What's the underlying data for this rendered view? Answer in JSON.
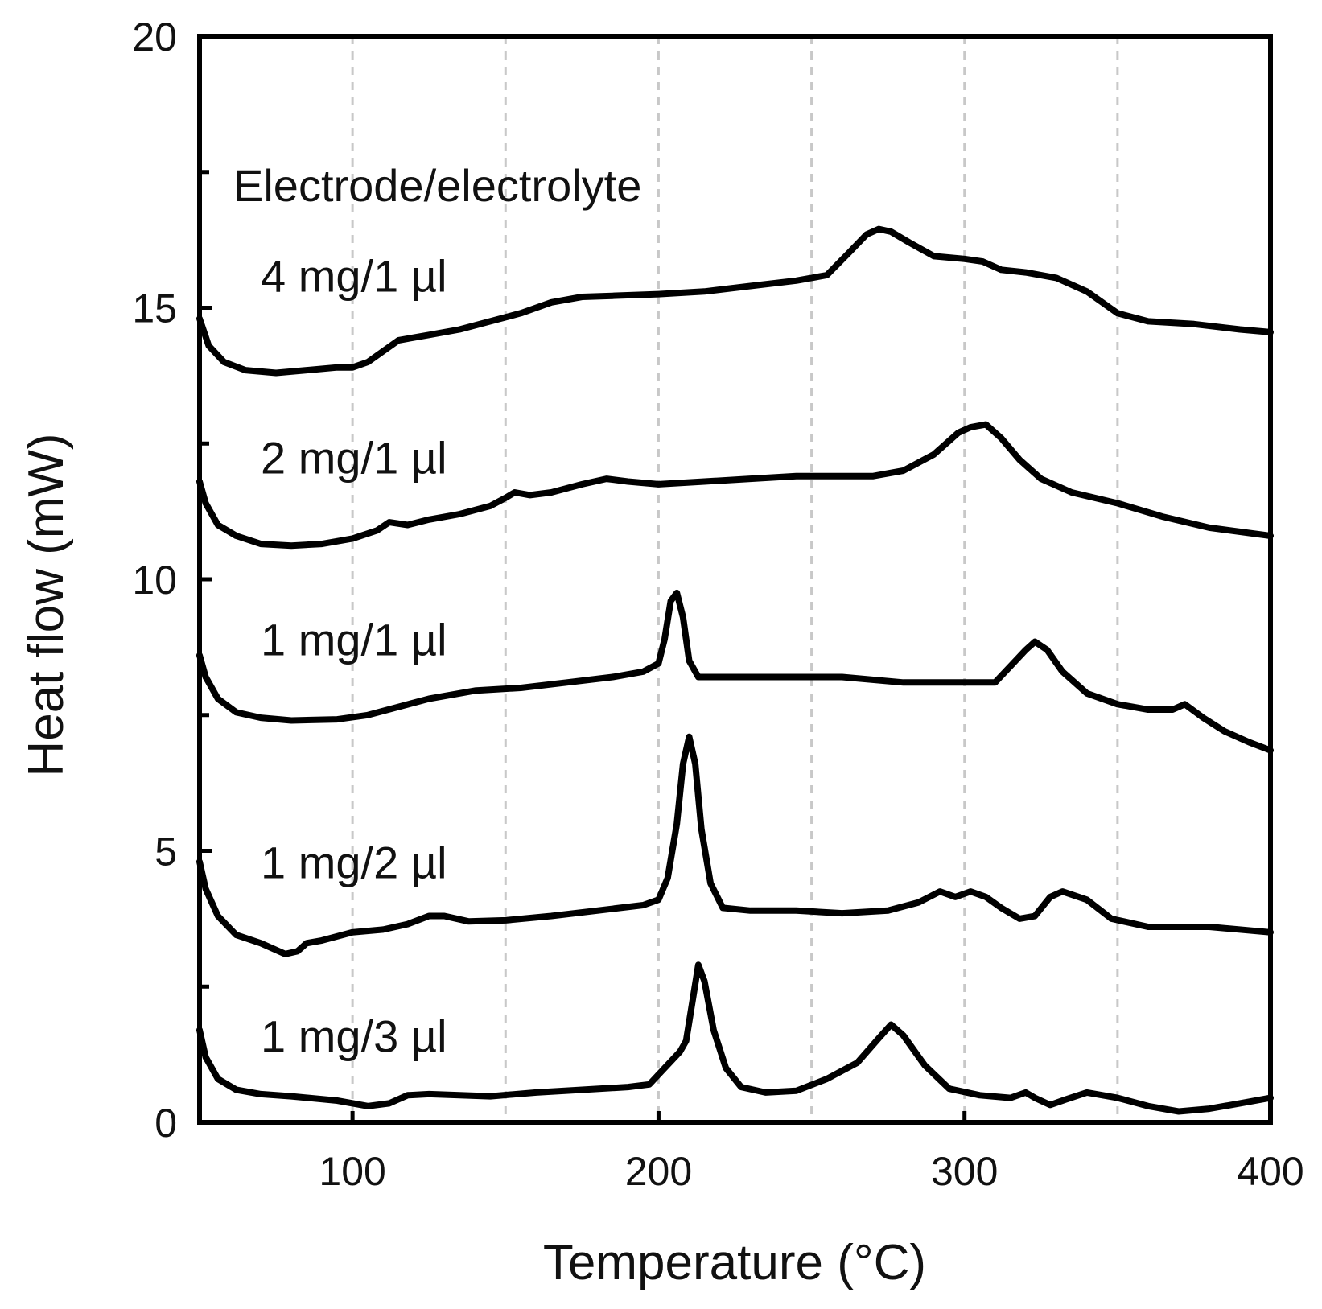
{
  "chart_data": {
    "type": "line",
    "title": "",
    "xlabel": "Temperature (°C)",
    "ylabel": "Heat flow (mW)",
    "xlim": [
      50,
      400
    ],
    "ylim": [
      0,
      20
    ],
    "x_ticks": [
      100,
      200,
      300,
      400
    ],
    "y_ticks": [
      0,
      5,
      10,
      15,
      20
    ],
    "y_minor_ticks": [
      2.5,
      7.5,
      12.5,
      17.5
    ],
    "x_grid": [
      100,
      150,
      200,
      250,
      300,
      350
    ],
    "grid": "vertical dashed",
    "annotation_title": "Electrode/electrolyte",
    "series": [
      {
        "name": "4 mg/1 µl",
        "label": "4 mg/1 µl",
        "label_at": [
          70,
          15.3
        ],
        "points": [
          [
            50,
            14.8
          ],
          [
            53,
            14.3
          ],
          [
            58,
            14.0
          ],
          [
            65,
            13.85
          ],
          [
            75,
            13.8
          ],
          [
            85,
            13.85
          ],
          [
            95,
            13.9
          ],
          [
            100,
            13.9
          ],
          [
            105,
            14.0
          ],
          [
            110,
            14.2
          ],
          [
            115,
            14.4
          ],
          [
            125,
            14.5
          ],
          [
            135,
            14.6
          ],
          [
            145,
            14.75
          ],
          [
            155,
            14.9
          ],
          [
            165,
            15.1
          ],
          [
            175,
            15.2
          ],
          [
            185,
            15.22
          ],
          [
            200,
            15.25
          ],
          [
            215,
            15.3
          ],
          [
            230,
            15.4
          ],
          [
            245,
            15.5
          ],
          [
            255,
            15.6
          ],
          [
            262,
            16.0
          ],
          [
            268,
            16.35
          ],
          [
            272,
            16.45
          ],
          [
            276,
            16.4
          ],
          [
            282,
            16.2
          ],
          [
            290,
            15.95
          ],
          [
            300,
            15.9
          ],
          [
            306,
            15.85
          ],
          [
            312,
            15.7
          ],
          [
            320,
            15.65
          ],
          [
            330,
            15.55
          ],
          [
            340,
            15.3
          ],
          [
            350,
            14.9
          ],
          [
            360,
            14.75
          ],
          [
            375,
            14.7
          ],
          [
            390,
            14.6
          ],
          [
            400,
            14.55
          ]
        ]
      },
      {
        "name": "2 mg/1 µl",
        "label": "2 mg/1 µl",
        "label_at": [
          70,
          11.95
        ],
        "points": [
          [
            50,
            11.8
          ],
          [
            52,
            11.4
          ],
          [
            56,
            11.0
          ],
          [
            62,
            10.8
          ],
          [
            70,
            10.65
          ],
          [
            80,
            10.62
          ],
          [
            90,
            10.65
          ],
          [
            100,
            10.75
          ],
          [
            108,
            10.9
          ],
          [
            112,
            11.05
          ],
          [
            118,
            11.0
          ],
          [
            125,
            11.1
          ],
          [
            135,
            11.2
          ],
          [
            145,
            11.35
          ],
          [
            150,
            11.5
          ],
          [
            153,
            11.6
          ],
          [
            158,
            11.55
          ],
          [
            165,
            11.6
          ],
          [
            175,
            11.75
          ],
          [
            183,
            11.85
          ],
          [
            190,
            11.8
          ],
          [
            200,
            11.75
          ],
          [
            215,
            11.8
          ],
          [
            230,
            11.85
          ],
          [
            245,
            11.9
          ],
          [
            260,
            11.9
          ],
          [
            270,
            11.9
          ],
          [
            280,
            12.0
          ],
          [
            290,
            12.3
          ],
          [
            298,
            12.7
          ],
          [
            302,
            12.8
          ],
          [
            307,
            12.85
          ],
          [
            312,
            12.6
          ],
          [
            318,
            12.2
          ],
          [
            325,
            11.85
          ],
          [
            335,
            11.6
          ],
          [
            350,
            11.4
          ],
          [
            365,
            11.15
          ],
          [
            380,
            10.95
          ],
          [
            400,
            10.8
          ]
        ]
      },
      {
        "name": "1 mg/1 µl",
        "label": "1 mg/1 µl",
        "label_at": [
          70,
          8.6
        ],
        "points": [
          [
            50,
            8.6
          ],
          [
            52,
            8.2
          ],
          [
            56,
            7.8
          ],
          [
            62,
            7.55
          ],
          [
            70,
            7.45
          ],
          [
            80,
            7.4
          ],
          [
            95,
            7.42
          ],
          [
            105,
            7.5
          ],
          [
            115,
            7.65
          ],
          [
            125,
            7.8
          ],
          [
            140,
            7.95
          ],
          [
            155,
            8.0
          ],
          [
            170,
            8.1
          ],
          [
            185,
            8.2
          ],
          [
            195,
            8.3
          ],
          [
            200,
            8.45
          ],
          [
            202,
            8.9
          ],
          [
            204,
            9.6
          ],
          [
            206,
            9.75
          ],
          [
            208,
            9.3
          ],
          [
            210,
            8.5
          ],
          [
            213,
            8.2
          ],
          [
            220,
            8.2
          ],
          [
            240,
            8.2
          ],
          [
            260,
            8.2
          ],
          [
            280,
            8.1
          ],
          [
            300,
            8.1
          ],
          [
            310,
            8.1
          ],
          [
            315,
            8.4
          ],
          [
            320,
            8.7
          ],
          [
            323,
            8.85
          ],
          [
            327,
            8.7
          ],
          [
            332,
            8.3
          ],
          [
            340,
            7.9
          ],
          [
            350,
            7.7
          ],
          [
            360,
            7.6
          ],
          [
            368,
            7.6
          ],
          [
            372,
            7.7
          ],
          [
            378,
            7.45
          ],
          [
            385,
            7.2
          ],
          [
            393,
            7.0
          ],
          [
            400,
            6.85
          ]
        ]
      },
      {
        "name": "1 mg/2 µl",
        "label": "1 mg/2 µl",
        "label_at": [
          70,
          4.5
        ],
        "points": [
          [
            50,
            4.8
          ],
          [
            52,
            4.3
          ],
          [
            56,
            3.8
          ],
          [
            62,
            3.45
          ],
          [
            70,
            3.3
          ],
          [
            78,
            3.1
          ],
          [
            82,
            3.15
          ],
          [
            85,
            3.3
          ],
          [
            90,
            3.35
          ],
          [
            100,
            3.5
          ],
          [
            110,
            3.55
          ],
          [
            118,
            3.65
          ],
          [
            125,
            3.8
          ],
          [
            130,
            3.8
          ],
          [
            138,
            3.7
          ],
          [
            150,
            3.72
          ],
          [
            165,
            3.8
          ],
          [
            180,
            3.9
          ],
          [
            195,
            4.0
          ],
          [
            200,
            4.1
          ],
          [
            203,
            4.5
          ],
          [
            206,
            5.5
          ],
          [
            208,
            6.6
          ],
          [
            210,
            7.1
          ],
          [
            212,
            6.6
          ],
          [
            214,
            5.4
          ],
          [
            217,
            4.4
          ],
          [
            221,
            3.95
          ],
          [
            230,
            3.9
          ],
          [
            245,
            3.9
          ],
          [
            260,
            3.85
          ],
          [
            275,
            3.9
          ],
          [
            285,
            4.05
          ],
          [
            292,
            4.25
          ],
          [
            297,
            4.15
          ],
          [
            302,
            4.25
          ],
          [
            307,
            4.15
          ],
          [
            312,
            3.95
          ],
          [
            318,
            3.75
          ],
          [
            323,
            3.8
          ],
          [
            328,
            4.15
          ],
          [
            332,
            4.25
          ],
          [
            340,
            4.1
          ],
          [
            348,
            3.75
          ],
          [
            360,
            3.6
          ],
          [
            380,
            3.6
          ],
          [
            400,
            3.5
          ]
        ]
      },
      {
        "name": "1 mg/3 µl",
        "label": "1 mg/3 µl",
        "label_at": [
          70,
          1.3
        ],
        "points": [
          [
            50,
            1.7
          ],
          [
            52,
            1.2
          ],
          [
            56,
            0.8
          ],
          [
            62,
            0.6
          ],
          [
            70,
            0.52
          ],
          [
            80,
            0.48
          ],
          [
            95,
            0.4
          ],
          [
            105,
            0.3
          ],
          [
            112,
            0.35
          ],
          [
            118,
            0.5
          ],
          [
            125,
            0.52
          ],
          [
            135,
            0.5
          ],
          [
            145,
            0.48
          ],
          [
            160,
            0.55
          ],
          [
            175,
            0.6
          ],
          [
            190,
            0.65
          ],
          [
            197,
            0.7
          ],
          [
            202,
            1.0
          ],
          [
            207,
            1.3
          ],
          [
            209,
            1.5
          ],
          [
            211,
            2.2
          ],
          [
            213,
            2.9
          ],
          [
            215,
            2.6
          ],
          [
            218,
            1.7
          ],
          [
            222,
            1.0
          ],
          [
            227,
            0.65
          ],
          [
            235,
            0.55
          ],
          [
            245,
            0.58
          ],
          [
            255,
            0.8
          ],
          [
            265,
            1.1
          ],
          [
            272,
            1.55
          ],
          [
            276,
            1.8
          ],
          [
            280,
            1.6
          ],
          [
            287,
            1.05
          ],
          [
            295,
            0.62
          ],
          [
            305,
            0.5
          ],
          [
            315,
            0.45
          ],
          [
            320,
            0.55
          ],
          [
            323,
            0.45
          ],
          [
            328,
            0.32
          ],
          [
            333,
            0.42
          ],
          [
            340,
            0.55
          ],
          [
            350,
            0.45
          ],
          [
            360,
            0.3
          ],
          [
            370,
            0.2
          ],
          [
            380,
            0.25
          ],
          [
            390,
            0.35
          ],
          [
            400,
            0.45
          ]
        ]
      }
    ]
  }
}
